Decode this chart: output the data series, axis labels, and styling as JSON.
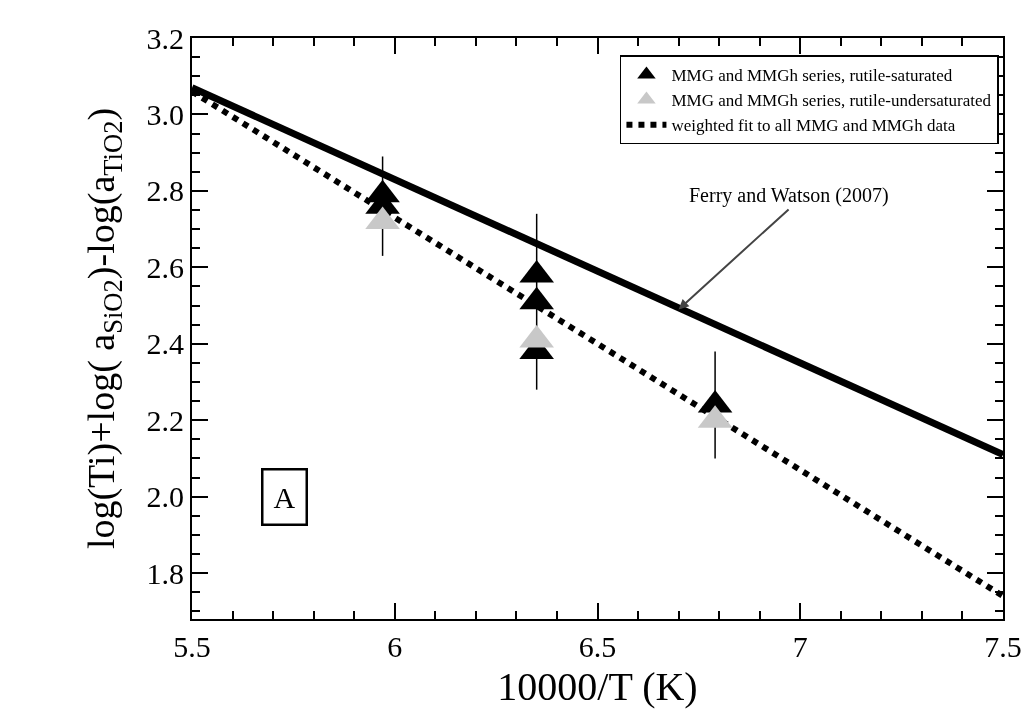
{
  "chart_data": {
    "type": "scatter",
    "xlabel": "10000/T (K)",
    "ylabel": "log(Ti)+log( a$_{SiO2}$)-log(a$_{TiO2}$)",
    "xlim": [
      5.5,
      7.5
    ],
    "ylim": [
      1.68,
      3.2
    ],
    "xticks": [
      5.5,
      {
        "value": 5.6,
        "label": null
      },
      {
        "value": 5.7,
        "label": null
      },
      {
        "value": 5.8,
        "label": null
      },
      {
        "value": 5.9,
        "label": null
      },
      6,
      {
        "value": 6.1,
        "label": null
      },
      {
        "value": 6.2,
        "label": null
      },
      {
        "value": 6.3,
        "label": null
      },
      {
        "value": 6.4,
        "label": null
      },
      6.5,
      {
        "value": 6.6,
        "label": null
      },
      {
        "value": 6.7,
        "label": null
      },
      {
        "value": 6.8,
        "label": null
      },
      {
        "value": 6.9,
        "label": null
      },
      7,
      {
        "value": 7.1,
        "label": null
      },
      {
        "value": 7.2,
        "label": null
      },
      {
        "value": 7.3,
        "label": null
      },
      {
        "value": 7.4,
        "label": null
      },
      7.5
    ],
    "yticks": [
      {
        "value": 1.7,
        "label": null
      },
      {
        "value": 1.75,
        "label": null
      },
      {
        "value": 1.8,
        "label": "1.8"
      },
      {
        "value": 1.85,
        "label": null
      },
      {
        "value": 1.9,
        "label": null
      },
      {
        "value": 1.95,
        "label": null
      },
      {
        "value": 2.0,
        "label": "2.0"
      },
      {
        "value": 2.05,
        "label": null
      },
      {
        "value": 2.1,
        "label": null
      },
      {
        "value": 2.15,
        "label": null
      },
      {
        "value": 2.2,
        "label": "2.2"
      },
      {
        "value": 2.25,
        "label": null
      },
      {
        "value": 2.3,
        "label": null
      },
      {
        "value": 2.35,
        "label": null
      },
      {
        "value": 2.4,
        "label": "2.4"
      },
      {
        "value": 2.45,
        "label": null
      },
      {
        "value": 2.5,
        "label": null
      },
      {
        "value": 2.55,
        "label": null
      },
      {
        "value": 2.6,
        "label": "2.6"
      },
      {
        "value": 2.65,
        "label": null
      },
      {
        "value": 2.7,
        "label": null
      },
      {
        "value": 2.75,
        "label": null
      },
      {
        "value": 2.8,
        "label": "2.8"
      },
      {
        "value": 2.85,
        "label": null
      },
      {
        "value": 2.9,
        "label": null
      },
      {
        "value": 2.95,
        "label": null
      },
      {
        "value": 3.0,
        "label": "3.0"
      },
      {
        "value": 3.05,
        "label": null
      },
      {
        "value": 3.1,
        "label": null
      },
      {
        "value": 3.15,
        "label": null
      },
      {
        "value": 3.2,
        "label": "3.2"
      }
    ],
    "legend": "top right",
    "marker": "triangle",
    "series": [
      {
        "type": "line",
        "color": "#000000",
        "line_style": "solid",
        "marker": "none",
        "x": [
          5.5,
          7.5
        ],
        "values": [
          3.07,
          2.11
        ]
      },
      {
        "name": "weighted fit to all MMG and MMGh data",
        "type": "line",
        "color": "#000000",
        "line_style": "dotted",
        "marker": "none",
        "x": [
          5.5,
          7.5
        ],
        "values": [
          3.06,
          1.74
        ]
      },
      {
        "name": "MMG and MMGh series, rutile-saturated",
        "color": "#000000",
        "x": [
          5.97,
          5.97,
          6.35,
          6.35,
          6.35,
          6.79
        ],
        "values": [
          2.79,
          2.76,
          2.58,
          2.51,
          2.38,
          2.24
        ],
        "errors": [
          null,
          0.13,
          null,
          0.23,
          null,
          0.14
        ]
      },
      {
        "name": "MMG and MMGh series, rutile-undersaturated",
        "color": "#c8c8c8",
        "x": [
          5.97,
          6.35,
          6.79
        ],
        "values": [
          2.72,
          2.41,
          2.2
        ]
      }
    ],
    "annotations": [
      {
        "text": "Ferry and Watson (2007)",
        "x": 6.7,
        "y": 2.49
      },
      "A"
    ]
  }
}
